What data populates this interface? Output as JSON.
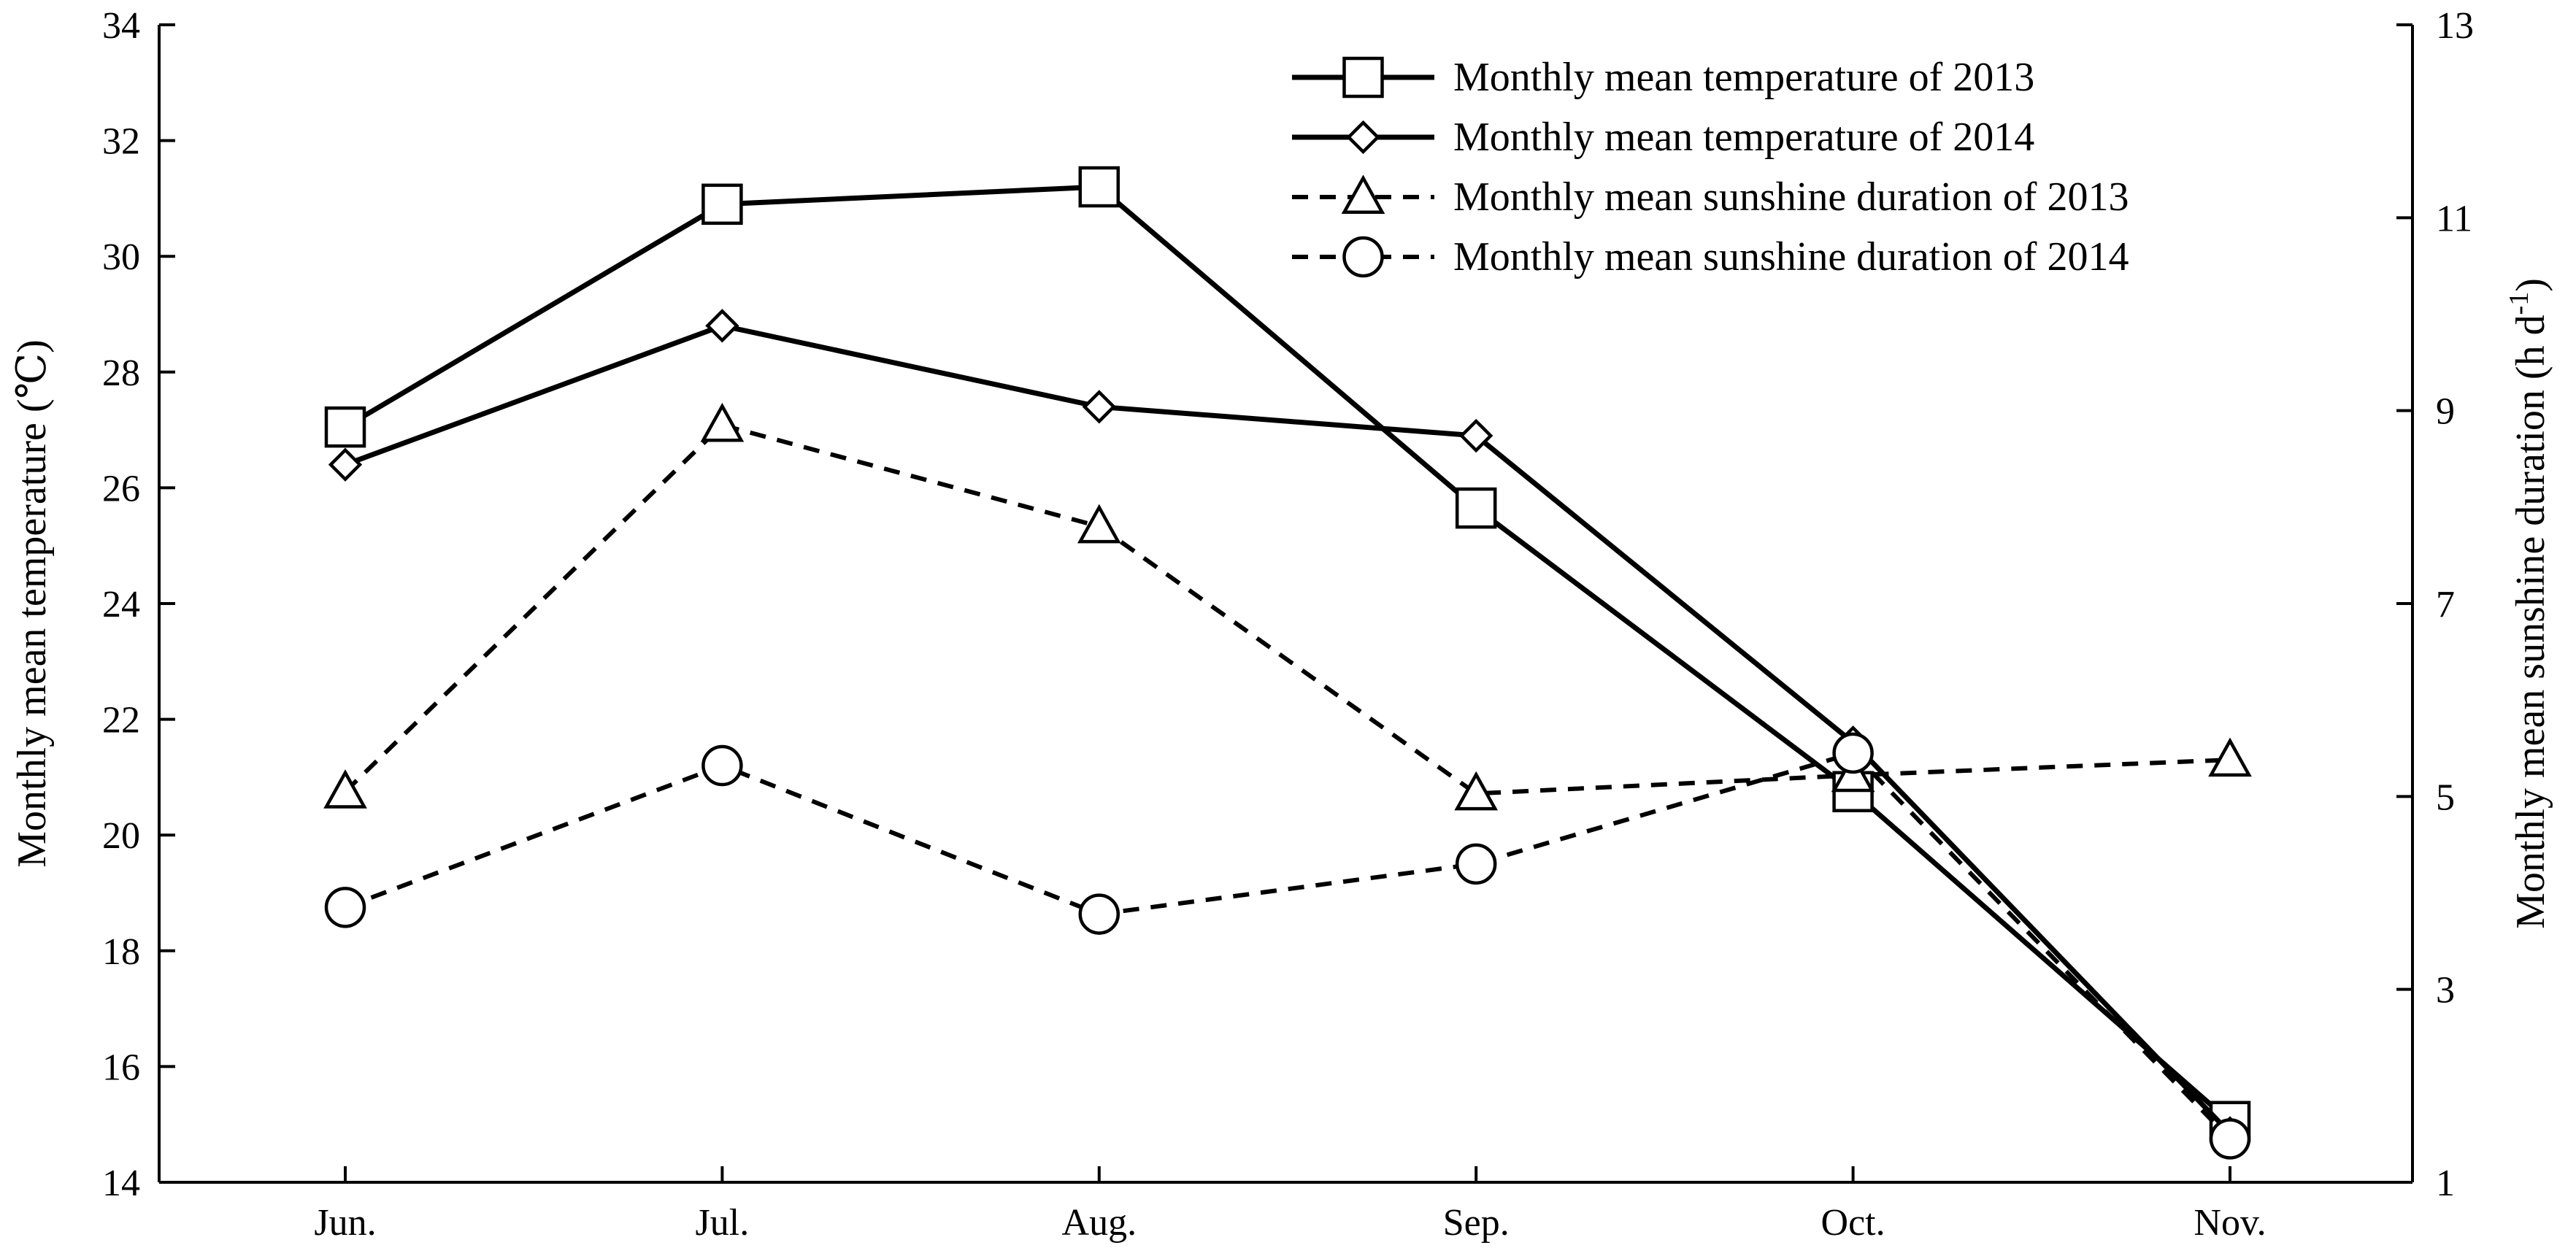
{
  "chart_data": {
    "type": "line",
    "categories": [
      "Jun.",
      "Jul.",
      "Aug.",
      "Sep.",
      "Oct.",
      "Nov."
    ],
    "y_left": {
      "label": "Monthly mean temperature (℃)",
      "ylim": [
        14,
        34
      ],
      "ticks": [
        "14",
        "16",
        "18",
        "20",
        "22",
        "24",
        "26",
        "28",
        "30",
        "32",
        "34"
      ]
    },
    "y_right": {
      "label": "Monthly mean sunshine duration (h d",
      "label_sup": "-1",
      "label_end": ")",
      "ylim": [
        1,
        13
      ],
      "ticks": [
        "1",
        "3",
        "5",
        "7",
        "9",
        "11",
        "13"
      ]
    },
    "series": [
      {
        "name": "Monthly mean temperature of 2013",
        "axis": "left",
        "marker": "square",
        "dash": false,
        "values": [
          27.05,
          30.9,
          31.2,
          25.65,
          20.75,
          15.05
        ]
      },
      {
        "name": "Monthly mean temperature of 2014",
        "axis": "left",
        "marker": "diamond",
        "dash": false,
        "values": [
          26.4,
          28.8,
          27.4,
          26.9,
          21.6,
          14.85
        ]
      },
      {
        "name": "Monthly mean sunshine duration of 2013",
        "axis": "right",
        "marker": "triangle",
        "dash": true,
        "values": [
          5.05,
          8.85,
          7.8,
          5.03,
          5.22,
          5.38
        ]
      },
      {
        "name": "Monthly mean sunshine duration of 2014",
        "axis": "right",
        "marker": "circle",
        "dash": true,
        "values": [
          3.85,
          5.32,
          3.78,
          4.3,
          5.45,
          1.45
        ]
      }
    ],
    "legend_position": "top-right",
    "grid": false
  }
}
